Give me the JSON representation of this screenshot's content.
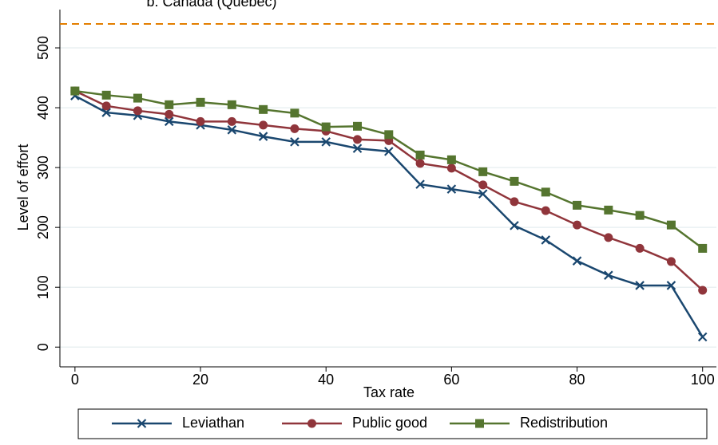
{
  "chart_data": {
    "type": "line",
    "title": "b. Canada (Quebec)",
    "x_label": "Tax rate",
    "y_label": "Level of effort",
    "x": [
      0,
      5,
      10,
      15,
      20,
      25,
      30,
      35,
      40,
      45,
      50,
      55,
      60,
      65,
      70,
      75,
      80,
      85,
      90,
      95,
      100
    ],
    "series": [
      {
        "name": "Leviathan",
        "color": "#1a476f",
        "marker": "x",
        "values": [
          420,
          392,
          387,
          377,
          371,
          363,
          352,
          343,
          343,
          332,
          327,
          272,
          264,
          256,
          203,
          179,
          144,
          120,
          103,
          103,
          17
        ]
      },
      {
        "name": "Public good",
        "color": "#90353b",
        "marker": "circle",
        "values": [
          428,
          403,
          395,
          389,
          377,
          377,
          371,
          365,
          361,
          347,
          345,
          307,
          299,
          271,
          243,
          228,
          204,
          183,
          165,
          143,
          95
        ]
      },
      {
        "name": "Redistribution",
        "color": "#55752f",
        "marker": "square",
        "values": [
          428,
          421,
          416,
          405,
          409,
          405,
          397,
          391,
          368,
          369,
          355,
          321,
          313,
          293,
          277,
          259,
          237,
          229,
          220,
          204,
          165
        ]
      }
    ],
    "reference_line": {
      "value": 540,
      "color": "#e37e00"
    },
    "xlim": [
      -2.4,
      102.2
    ],
    "ylim": [
      -33,
      564
    ],
    "xticks": [
      0,
      20,
      40,
      60,
      80,
      100
    ],
    "yticks": [
      0,
      100,
      200,
      300,
      400,
      500
    ],
    "grid": true
  }
}
